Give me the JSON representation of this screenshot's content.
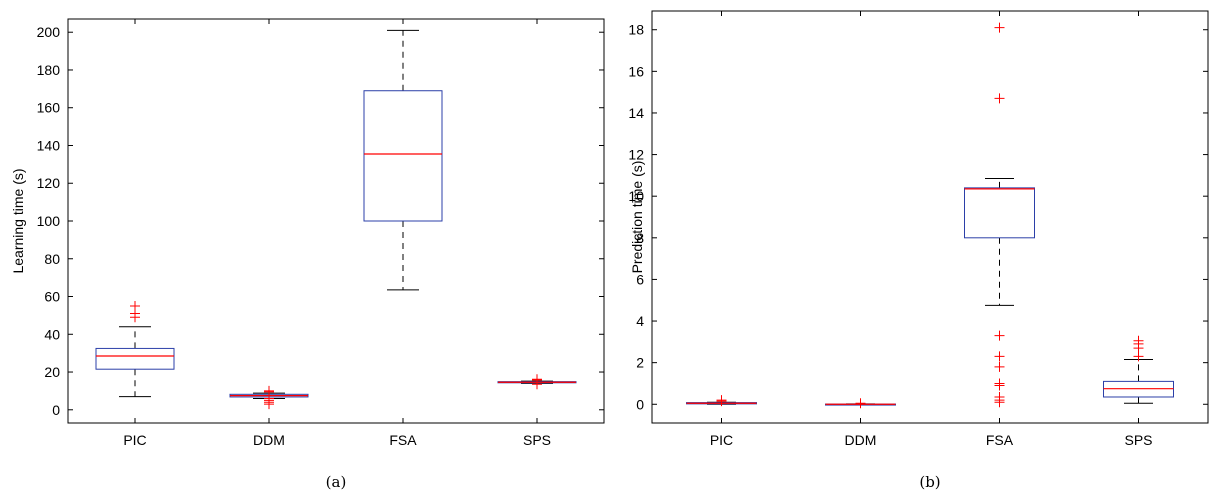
{
  "colors": {
    "box": "#2b3fa8",
    "median": "#ff0000",
    "whisker": "#000000",
    "outlier": "#ff0000"
  },
  "chart_data": [
    {
      "type": "box",
      "caption": "(a)",
      "ylabel": "Learning time (s)",
      "ylim": [
        -7,
        207
      ],
      "yticks": [
        0,
        20,
        40,
        60,
        80,
        100,
        120,
        140,
        160,
        180,
        200
      ],
      "grid": false,
      "categories": [
        "PIC",
        "DDM",
        "FSA",
        "SPS"
      ],
      "boxes": [
        {
          "category": "PIC",
          "whisker_low": 7,
          "q1": 21.5,
          "median": 28.5,
          "q3": 32.5,
          "whisker_high": 44,
          "outliers": [
            49,
            51,
            55
          ]
        },
        {
          "category": "DDM",
          "whisker_low": 6,
          "q1": 6.8,
          "median": 7.5,
          "q3": 8.2,
          "whisker_high": 8.8,
          "outliers": [
            3,
            4,
            5,
            6,
            9.5,
            10
          ]
        },
        {
          "category": "FSA",
          "whisker_low": 63.5,
          "q1": 100,
          "median": 135.5,
          "q3": 169,
          "whisker_high": 201,
          "outliers": []
        },
        {
          "category": "SPS",
          "whisker_low": 14,
          "q1": 14.3,
          "median": 14.6,
          "q3": 14.9,
          "whisker_high": 15.2,
          "outliers": [
            13.5,
            15.8,
            16.2
          ]
        }
      ]
    },
    {
      "type": "box",
      "caption": "(b)",
      "ylabel": "Prediction time (s)",
      "ylim": [
        -0.9,
        18.9
      ],
      "yticks": [
        0,
        2,
        4,
        6,
        8,
        10,
        12,
        14,
        16,
        18
      ],
      "grid": false,
      "categories": [
        "PIC",
        "DDM",
        "FSA",
        "SPS"
      ],
      "boxes": [
        {
          "category": "PIC",
          "whisker_low": 0,
          "q1": 0.02,
          "median": 0.05,
          "q3": 0.08,
          "whisker_high": 0.1,
          "outliers": [
            0.15,
            0.2
          ]
        },
        {
          "category": "DDM",
          "whisker_low": 0,
          "q1": 0,
          "median": 0,
          "q3": 0.01,
          "whisker_high": 0.02,
          "outliers": [
            0.05
          ]
        },
        {
          "category": "FSA",
          "whisker_low": 4.75,
          "q1": 8,
          "median": 10.35,
          "q3": 10.4,
          "whisker_high": 10.85,
          "outliers": [
            0.1,
            0.2,
            0.35,
            0.9,
            1.0,
            1.8,
            2.3,
            3.3,
            14.7,
            18.1
          ]
        },
        {
          "category": "SPS",
          "whisker_low": 0.05,
          "q1": 0.35,
          "median": 0.75,
          "q3": 1.1,
          "whisker_high": 2.15,
          "outliers": [
            2.3,
            2.7,
            2.9,
            3.05
          ]
        }
      ]
    }
  ]
}
